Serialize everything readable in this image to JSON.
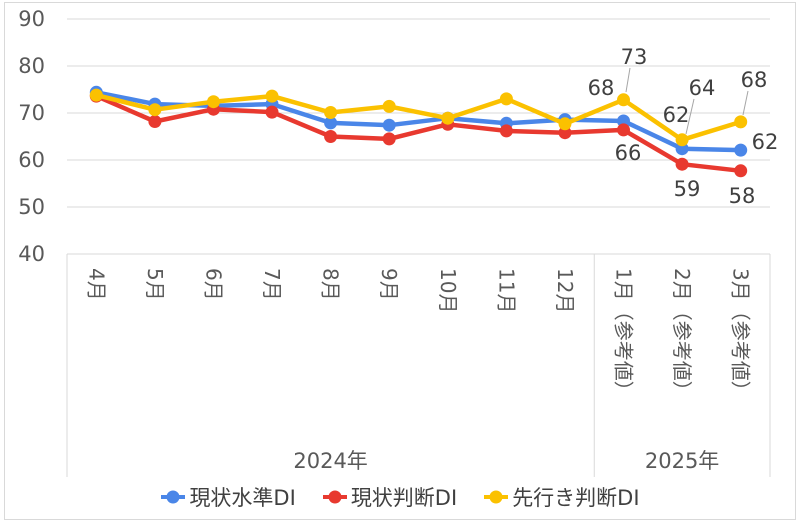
{
  "chart_data": {
    "type": "line",
    "ylim": [
      40,
      90
    ],
    "yticks": [
      40,
      50,
      60,
      70,
      80,
      90
    ],
    "grid": true,
    "legend": "bottom",
    "categories": [
      "4月",
      "5月",
      "6月",
      "7月",
      "8月",
      "9月",
      "10月",
      "11月",
      "12月",
      "1月（参考値）",
      "2月（参考値）",
      "3月（参考値）"
    ],
    "category_groups": [
      {
        "label": "2024年",
        "count": 9
      },
      {
        "label": "2025年",
        "count": 3
      }
    ],
    "series": [
      {
        "name": "現状水準DI",
        "color": "#4a86e8",
        "values": [
          74.4,
          71.9,
          71.5,
          71.9,
          67.9,
          67.4,
          68.9,
          67.8,
          68.6,
          68.3,
          62.4,
          62.1
        ],
        "data_labels": [
          null,
          null,
          null,
          null,
          null,
          null,
          null,
          null,
          null,
          "68",
          "62",
          "62"
        ]
      },
      {
        "name": "現状判断DI",
        "color": "#e8392f",
        "values": [
          73.6,
          68.2,
          70.8,
          70.2,
          65.0,
          64.5,
          67.6,
          66.2,
          65.8,
          66.4,
          59.1,
          57.7
        ],
        "data_labels": [
          null,
          null,
          null,
          null,
          null,
          null,
          null,
          null,
          null,
          "66",
          "59",
          "58"
        ]
      },
      {
        "name": "先行き判断DI",
        "color": "#fbc100",
        "values": [
          73.8,
          70.7,
          72.4,
          73.6,
          70.1,
          71.4,
          68.9,
          73.0,
          67.7,
          72.8,
          64.3,
          68.1
        ],
        "data_labels": [
          null,
          null,
          null,
          null,
          null,
          null,
          null,
          null,
          null,
          "73",
          "64",
          "68"
        ]
      }
    ]
  }
}
